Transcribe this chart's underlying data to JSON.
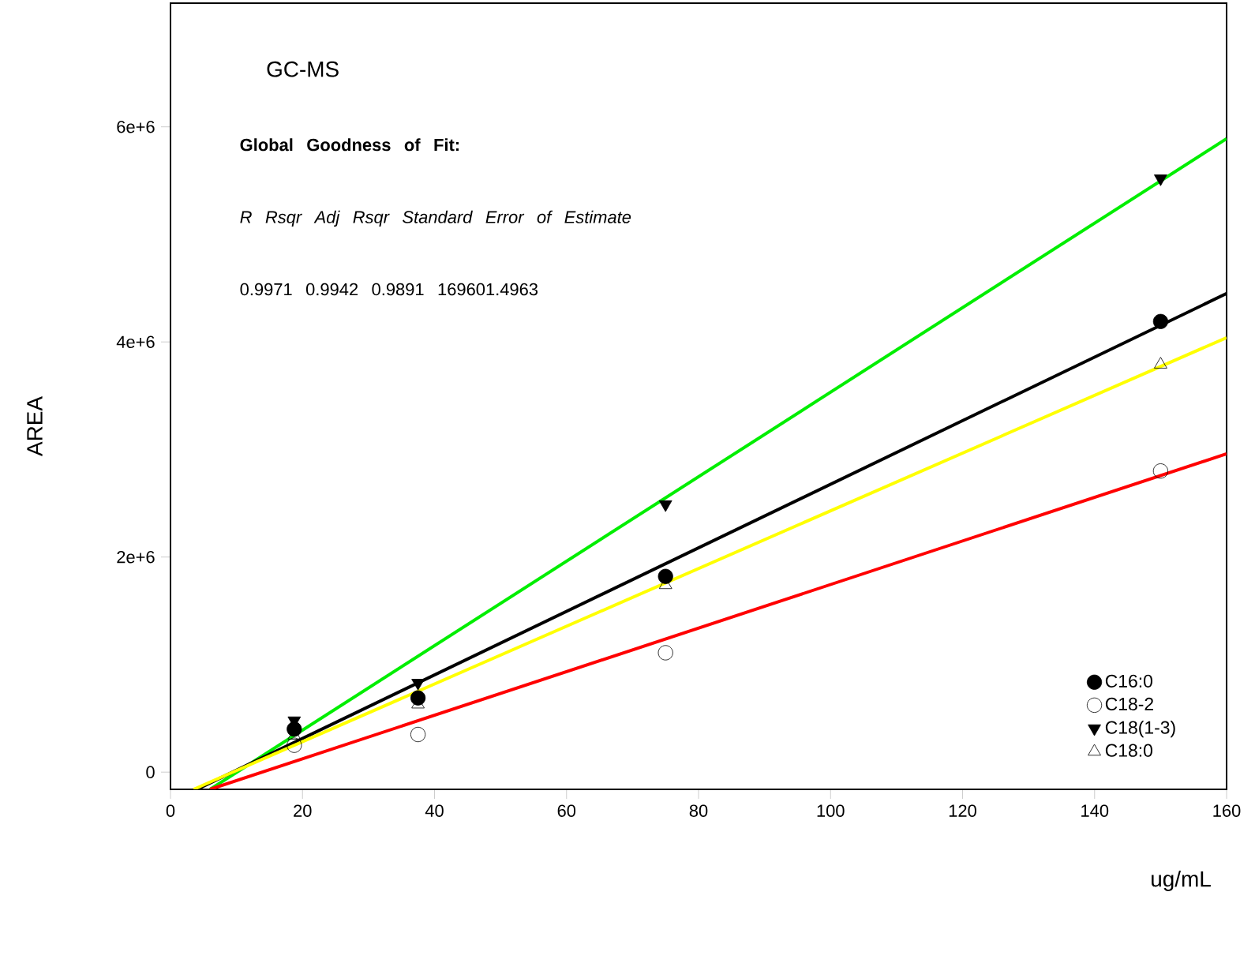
{
  "chart_data": {
    "type": "scatter",
    "title": "GC-MS",
    "xlabel": "ug/mL",
    "ylabel": "AREA",
    "annotations": [
      "**Global Goodness of Fit:**",
      "*R    Rsqr    Adj Rsqr    Standard Error of Estimate*",
      "0.9971   0.9942   0.9891       169601.4963"
    ],
    "xlim": [
      0,
      160
    ],
    "xticks": [
      0,
      20,
      40,
      60,
      80,
      100,
      120,
      140,
      160
    ],
    "ylim": [
      -160000,
      7150000
    ],
    "yticks": [
      {
        "value": 0,
        "label": "0"
      },
      {
        "value": 2000000,
        "label": "2e+6"
      },
      {
        "value": 4000000,
        "label": "4e+6"
      },
      {
        "value": 6000000,
        "label": "6e+6"
      }
    ],
    "grid": false,
    "legend": "bottom right",
    "series": [
      {
        "type": "line",
        "color": "#00ee00",
        "marker": "none",
        "x": [
          6,
          160
        ],
        "values": [
          -160000,
          5890000
        ]
      },
      {
        "type": "line",
        "color": "#000000",
        "marker": "none",
        "x": [
          4,
          160
        ],
        "values": [
          -160000,
          4450000
        ]
      },
      {
        "type": "line",
        "color": "#ffff00",
        "marker": "none",
        "x": [
          3.5,
          160
        ],
        "values": [
          -160000,
          4040000
        ]
      },
      {
        "type": "line",
        "color": "#ff0000",
        "marker": "none",
        "x": [
          6,
          160
        ],
        "values": [
          -160000,
          2960000
        ]
      },
      {
        "name": "C16:0",
        "color": "#000000",
        "marker": "circle",
        "x": [
          18.75,
          37.5,
          75,
          150
        ],
        "values": [
          400000,
          690000,
          1820000,
          4190000
        ]
      },
      {
        "name": "C18-2",
        "color": "#000000",
        "marker": "circle-open",
        "x": [
          18.75,
          37.5,
          75,
          150
        ],
        "values": [
          250000,
          350000,
          1110000,
          2800000
        ]
      },
      {
        "name": "C18(1-3)",
        "color": "#000000",
        "marker": "triangle-down",
        "x": [
          18.75,
          37.5,
          75,
          150
        ],
        "values": [
          480000,
          830000,
          2490000,
          5520000
        ]
      },
      {
        "name": "C18:0",
        "color": "#000000",
        "marker": "triangle-open",
        "x": [
          18.75,
          37.5,
          75,
          150
        ],
        "values": [
          340000,
          630000,
          1740000,
          3790000
        ]
      }
    ]
  }
}
